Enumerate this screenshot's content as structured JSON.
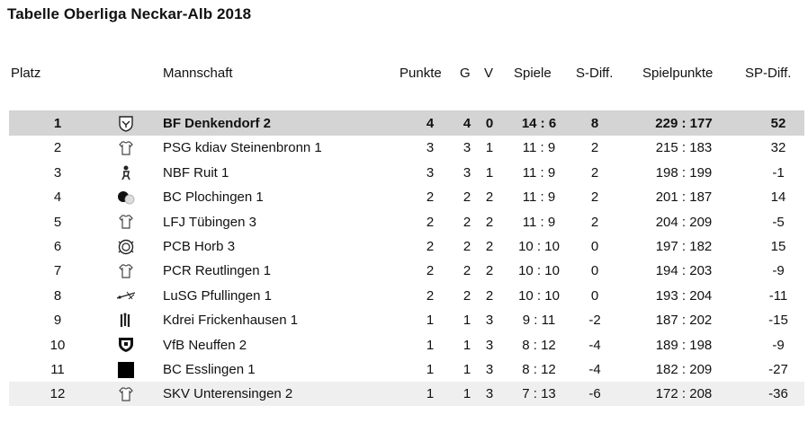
{
  "title": "Tabelle Oberliga Neckar-Alb 2018",
  "headers": {
    "platz": "Platz",
    "mannschaft": "Mannschaft",
    "punkte": "Punkte",
    "g": "G",
    "v": "V",
    "spiele": "Spiele",
    "sdiff": "S-Diff.",
    "spielpunkte": "Spielpunkte",
    "spdiff": "SP-Diff."
  },
  "rows": [
    {
      "platz": "1",
      "logo": "eagle-crest-icon",
      "team": "BF Denkendorf 2",
      "punkte": "4",
      "g": "4",
      "v": "0",
      "spiele": "14 : 6",
      "sdiff": "8",
      "spielpunkte": "229 : 177",
      "spdiff": "52"
    },
    {
      "platz": "2",
      "logo": "jersey-icon",
      "team": "PSG kdiav Steinenbronn 1",
      "punkte": "3",
      "g": "3",
      "v": "1",
      "spiele": "11 : 9",
      "sdiff": "2",
      "spielpunkte": "215 : 183",
      "spdiff": "32"
    },
    {
      "platz": "3",
      "logo": "figure-icon",
      "team": "NBF Ruit 1",
      "punkte": "3",
      "g": "3",
      "v": "1",
      "spiele": "11 : 9",
      "sdiff": "2",
      "spielpunkte": "198 : 199",
      "spdiff": "-1"
    },
    {
      "platz": "4",
      "logo": "balls-icon",
      "team": "BC Plochingen 1",
      "punkte": "2",
      "g": "2",
      "v": "2",
      "spiele": "11 : 9",
      "sdiff": "2",
      "spielpunkte": "201 : 187",
      "spdiff": "14"
    },
    {
      "platz": "5",
      "logo": "jersey-icon",
      "team": "LFJ Tübingen 3",
      "punkte": "2",
      "g": "2",
      "v": "2",
      "spiele": "11 : 9",
      "sdiff": "2",
      "spielpunkte": "204 : 209",
      "spdiff": "-5"
    },
    {
      "platz": "6",
      "logo": "round-badge-icon",
      "team": "PCB Horb 3",
      "punkte": "2",
      "g": "2",
      "v": "2",
      "spiele": "10 : 10",
      "sdiff": "0",
      "spielpunkte": "197 : 182",
      "spdiff": "15"
    },
    {
      "platz": "7",
      "logo": "jersey-icon",
      "team": "PCR Reutlingen 1",
      "punkte": "2",
      "g": "2",
      "v": "2",
      "spiele": "10 : 10",
      "sdiff": "0",
      "spielpunkte": "194 : 203",
      "spdiff": "-9"
    },
    {
      "platz": "8",
      "logo": "cue-icon",
      "team": "LuSG Pfullingen 1",
      "punkte": "2",
      "g": "2",
      "v": "2",
      "spiele": "10 : 10",
      "sdiff": "0",
      "spielpunkte": "193 : 204",
      "spdiff": "-11"
    },
    {
      "platz": "9",
      "logo": "figures-icon",
      "team": "Kdrei Frickenhausen 1",
      "punkte": "1",
      "g": "1",
      "v": "3",
      "spiele": "9 : 11",
      "sdiff": "-2",
      "spielpunkte": "187 : 202",
      "spdiff": "-15"
    },
    {
      "platz": "10",
      "logo": "shield-icon",
      "team": "VfB Neuffen 2",
      "punkte": "1",
      "g": "1",
      "v": "3",
      "spiele": "8 : 12",
      "sdiff": "-4",
      "spielpunkte": "189 : 198",
      "spdiff": "-9"
    },
    {
      "platz": "11",
      "logo": "black-square-icon",
      "team": "BC Esslingen 1",
      "punkte": "1",
      "g": "1",
      "v": "3",
      "spiele": "8 : 12",
      "sdiff": "-4",
      "spielpunkte": "182 : 209",
      "spdiff": "-27"
    },
    {
      "platz": "12",
      "logo": "jersey-icon",
      "team": "SKV Unterensingen 2",
      "punkte": "1",
      "g": "1",
      "v": "3",
      "spiele": "7 : 13",
      "sdiff": "-6",
      "spielpunkte": "172 : 208",
      "spdiff": "-36"
    }
  ]
}
